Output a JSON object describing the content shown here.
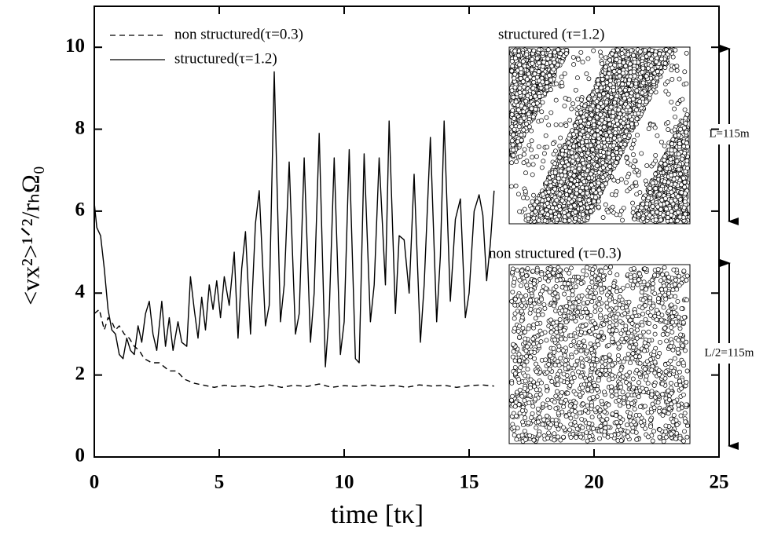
{
  "chart_data": {
    "type": "line",
    "x_label": "time [tκ]",
    "y_label": "<vx²>¹ᐟ²/rₕΩ₀",
    "xlim": [
      0,
      25
    ],
    "ylim": [
      0,
      11
    ],
    "xticks": [
      0,
      5,
      10,
      15,
      20,
      25
    ],
    "yticks": [
      0,
      2,
      4,
      6,
      8,
      10
    ],
    "inset_labels": [
      "structured (τ=1.2)",
      "non structured (τ=0.3)"
    ],
    "scale_labels": [
      "L=115m",
      "L/2=115m"
    ],
    "series": [
      {
        "name": "non structured(τ=0.3)",
        "color": "#000000",
        "dash": true,
        "x": [
          0,
          0.2,
          0.4,
          0.55,
          0.7,
          0.85,
          1.0,
          1.2,
          1.4,
          1.6,
          1.8,
          2.0,
          2.3,
          2.6,
          3.0,
          3.3,
          3.6,
          4.0,
          4.4,
          4.8,
          5.2,
          5.6,
          6.0,
          6.5,
          7.0,
          7.5,
          8.0,
          8.5,
          9.0,
          9.5,
          10.0,
          10.5,
          11.0,
          11.5,
          12.0,
          12.5,
          13.0,
          13.5,
          14.0,
          14.5,
          15.0,
          15.5,
          16.0
        ],
        "values": [
          3.5,
          3.6,
          3.1,
          3.4,
          3.3,
          3.1,
          3.2,
          3.0,
          2.9,
          2.7,
          2.6,
          2.4,
          2.3,
          2.3,
          2.1,
          2.1,
          1.9,
          1.8,
          1.75,
          1.7,
          1.75,
          1.72,
          1.74,
          1.7,
          1.76,
          1.7,
          1.75,
          1.72,
          1.78,
          1.7,
          1.74,
          1.72,
          1.76,
          1.72,
          1.75,
          1.7,
          1.76,
          1.73,
          1.75,
          1.7,
          1.74,
          1.76,
          1.73
        ]
      },
      {
        "name": "structured(τ=1.2)",
        "color": "#000000",
        "dash": false,
        "x": [
          0,
          0.1,
          0.25,
          0.4,
          0.55,
          0.7,
          0.85,
          1.0,
          1.15,
          1.3,
          1.45,
          1.6,
          1.75,
          1.9,
          2.05,
          2.2,
          2.35,
          2.5,
          2.7,
          2.85,
          3.0,
          3.15,
          3.35,
          3.5,
          3.7,
          3.85,
          4.0,
          4.15,
          4.3,
          4.45,
          4.6,
          4.75,
          4.9,
          5.05,
          5.2,
          5.4,
          5.6,
          5.75,
          5.9,
          6.05,
          6.25,
          6.45,
          6.6,
          6.85,
          7.0,
          7.2,
          7.45,
          7.6,
          7.8,
          8.05,
          8.2,
          8.4,
          8.65,
          8.8,
          9.0,
          9.25,
          9.4,
          9.6,
          9.85,
          10.0,
          10.2,
          10.45,
          10.6,
          10.8,
          11.05,
          11.2,
          11.4,
          11.65,
          11.8,
          12.05,
          12.2,
          12.4,
          12.6,
          12.8,
          13.05,
          13.2,
          13.45,
          13.7,
          13.85,
          14.0,
          14.25,
          14.45,
          14.65,
          14.85,
          15.0,
          15.2,
          15.4,
          15.55,
          15.7,
          15.85,
          16.0
        ],
        "values": [
          6.2,
          5.6,
          5.4,
          4.6,
          3.6,
          3.1,
          3.0,
          2.5,
          2.4,
          2.9,
          2.6,
          2.5,
          3.2,
          2.8,
          3.5,
          3.8,
          3.0,
          2.6,
          3.8,
          2.7,
          3.4,
          2.6,
          3.3,
          2.8,
          2.7,
          4.4,
          3.6,
          2.9,
          3.9,
          3.1,
          4.2,
          3.6,
          4.3,
          3.4,
          4.4,
          3.7,
          5.0,
          2.9,
          4.6,
          5.5,
          3.0,
          5.7,
          6.5,
          3.2,
          3.7,
          9.4,
          3.3,
          4.2,
          7.2,
          3.0,
          3.5,
          7.3,
          2.8,
          4.0,
          7.9,
          2.2,
          3.5,
          7.3,
          2.5,
          3.3,
          7.5,
          2.4,
          2.3,
          7.4,
          3.3,
          4.2,
          7.3,
          4.2,
          8.2,
          3.5,
          5.4,
          5.3,
          4.0,
          6.9,
          2.8,
          4.2,
          7.8,
          3.3,
          4.9,
          8.2,
          3.8,
          5.8,
          6.3,
          3.4,
          4.0,
          6.0,
          6.4,
          5.9,
          4.3,
          5.2,
          6.5
        ]
      }
    ]
  }
}
